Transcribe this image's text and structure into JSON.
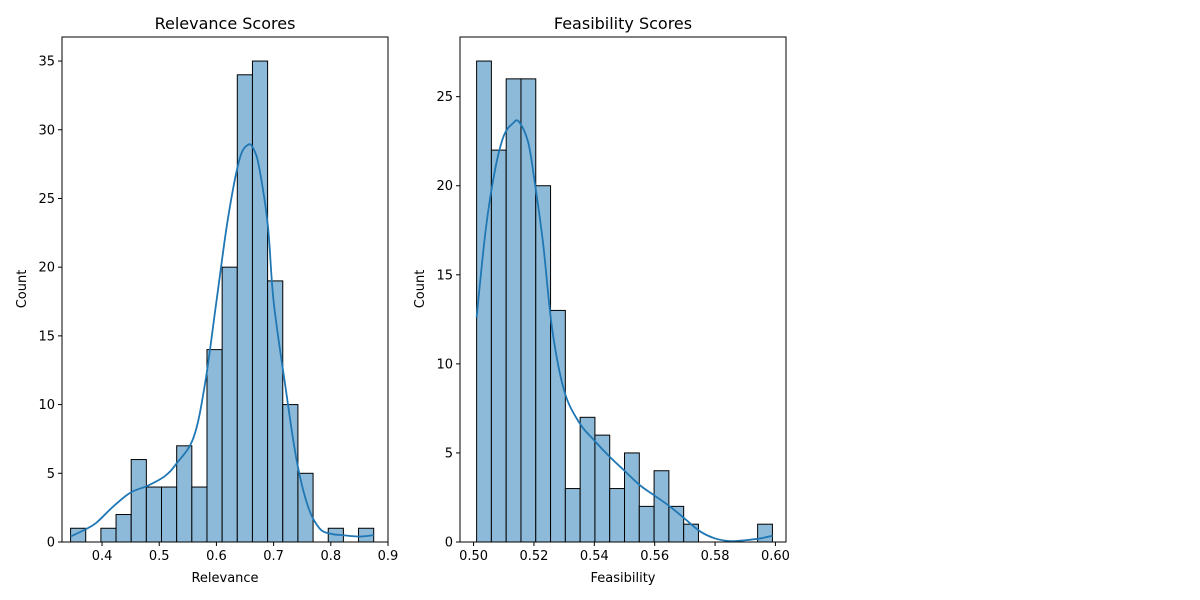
{
  "colors": {
    "bar_fill": "#8ebad9",
    "bar_edge": "#000000",
    "kde_line": "#1f77b4",
    "axes_frame": "#000000"
  },
  "chart_data": [
    {
      "type": "bar",
      "title": "Relevance Scores",
      "xlabel": "Relevance",
      "ylabel": "Count",
      "xlim": [
        0.33,
        0.9
      ],
      "ylim": [
        0,
        36.75
      ],
      "grid": false,
      "xticks": [
        0.4,
        0.5,
        0.6,
        0.7,
        0.8,
        0.9
      ],
      "xtick_labels": [
        "0.4",
        "0.5",
        "0.6",
        "0.7",
        "0.8",
        "0.9"
      ],
      "yticks": [
        0,
        5,
        10,
        15,
        20,
        25,
        30,
        35
      ],
      "ytick_labels": [
        "0",
        "5",
        "10",
        "15",
        "20",
        "25",
        "30",
        "35"
      ],
      "bin_edges": [
        0.345,
        0.3715,
        0.398,
        0.4245,
        0.451,
        0.4775,
        0.504,
        0.5305,
        0.557,
        0.5835,
        0.61,
        0.6365,
        0.663,
        0.6895,
        0.716,
        0.7425,
        0.769,
        0.7955,
        0.822,
        0.8485,
        0.875
      ],
      "counts": [
        1,
        0,
        1,
        2,
        6,
        4,
        4,
        7,
        4,
        14,
        20,
        34,
        35,
        19,
        10,
        5,
        0,
        1,
        0,
        1
      ],
      "kde": {
        "x": [
          0.345,
          0.37,
          0.39,
          0.42,
          0.45,
          0.48,
          0.51,
          0.53,
          0.56,
          0.58,
          0.6,
          0.62,
          0.64,
          0.655,
          0.665,
          0.675,
          0.69,
          0.7,
          0.72,
          0.74,
          0.76,
          0.78,
          0.8,
          0.82,
          0.85,
          0.875
        ],
        "y": [
          0.4,
          0.9,
          1.4,
          2.6,
          3.6,
          4.1,
          4.8,
          5.7,
          7.6,
          11.5,
          17.5,
          23.5,
          27.8,
          28.9,
          28.6,
          27.2,
          23.0,
          17.5,
          11.5,
          6.0,
          2.6,
          1.0,
          0.6,
          0.5,
          0.4,
          0.5
        ]
      }
    },
    {
      "type": "bar",
      "title": "Feasibility Scores",
      "xlabel": "Feasibility",
      "ylabel": "Count",
      "xlim": [
        0.4955,
        0.6035
      ],
      "ylim": [
        0,
        28.35
      ],
      "grid": false,
      "xticks": [
        0.5,
        0.52,
        0.54,
        0.56,
        0.58,
        0.6
      ],
      "xtick_labels": [
        "0.50",
        "0.52",
        "0.54",
        "0.56",
        "0.58",
        "0.60"
      ],
      "yticks": [
        0,
        5,
        10,
        15,
        20,
        25
      ],
      "ytick_labels": [
        "0",
        "5",
        "10",
        "15",
        "20",
        "25"
      ],
      "bin_edges": [
        0.501,
        0.5059,
        0.5108,
        0.5157,
        0.5206,
        0.5255,
        0.5304,
        0.5353,
        0.5402,
        0.5451,
        0.55,
        0.5549,
        0.5598,
        0.5647,
        0.5696,
        0.5745,
        0.5794,
        0.5843,
        0.5892,
        0.5941,
        0.599
      ],
      "counts": [
        27,
        22,
        26,
        26,
        20,
        13,
        3,
        7,
        6,
        3,
        5,
        2,
        4,
        2,
        1,
        0,
        0,
        0,
        0,
        1
      ],
      "kde": {
        "x": [
          0.501,
          0.504,
          0.507,
          0.51,
          0.513,
          0.515,
          0.518,
          0.52,
          0.523,
          0.526,
          0.53,
          0.535,
          0.54,
          0.545,
          0.55,
          0.555,
          0.56,
          0.565,
          0.57,
          0.575,
          0.58,
          0.585,
          0.59,
          0.595,
          0.599
        ],
        "y": [
          12.6,
          17.5,
          20.8,
          22.8,
          23.5,
          23.6,
          22.5,
          20.5,
          16.8,
          12.0,
          8.5,
          6.7,
          5.7,
          4.8,
          4.0,
          3.2,
          2.6,
          2.0,
          1.3,
          0.6,
          0.2,
          0.05,
          0.1,
          0.2,
          0.35
        ]
      }
    }
  ]
}
